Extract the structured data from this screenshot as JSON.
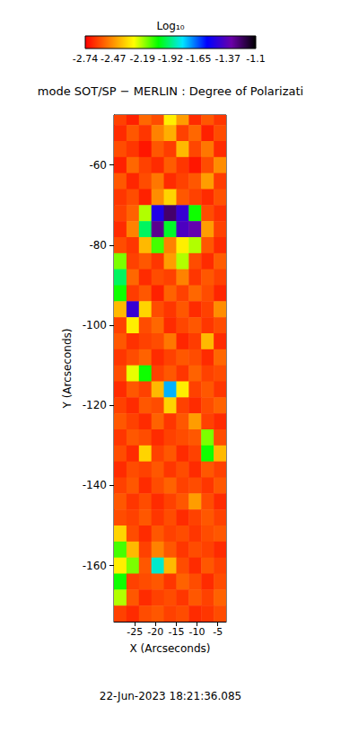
{
  "chart_data": {
    "type": "heatmap",
    "title": "mode SOT/SP − MERLIN : Degree of Polarizati",
    "x_label": "X (Arcseconds)",
    "y_label": "Y (Arcseconds)",
    "annotation": "22-Jun-2023 18:21:36.085",
    "xlim": [
      -30,
      -3
    ],
    "ylim": [
      -174,
      -47.5
    ],
    "xticks": [
      -25,
      -20,
      -15,
      -10,
      -5
    ],
    "yticks": [
      -60,
      -80,
      -100,
      -120,
      -140,
      -160
    ],
    "colorbar": {
      "label": "Log₁₀",
      "range": [
        -2.74,
        -1.1
      ],
      "ticks": [
        -2.74,
        -2.47,
        -2.19,
        -1.92,
        -1.65,
        -1.37,
        -1.1
      ]
    },
    "x": [
      -28.5,
      -25.5,
      -22.5,
      -19.5,
      -16.5,
      -13.5,
      -10.5,
      -7.5,
      -4.5
    ],
    "y": [
      -48,
      -52,
      -56,
      -60,
      -64,
      -68,
      -72,
      -76,
      -80,
      -84,
      -88,
      -92,
      -96,
      -100,
      -104,
      -108,
      -112,
      -116,
      -120,
      -124,
      -128,
      -132,
      -136,
      -140,
      -144,
      -148,
      -152,
      -156,
      -160,
      -164,
      -168,
      -172
    ],
    "values": [
      [
        -2.62,
        -2.68,
        -2.55,
        -2.6,
        -2.3,
        -2.45,
        -2.66,
        -2.58,
        -2.64
      ],
      [
        -2.66,
        -2.58,
        -2.64,
        -2.5,
        -2.42,
        -2.62,
        -2.55,
        -2.68,
        -2.6
      ],
      [
        -2.6,
        -2.64,
        -2.7,
        -2.58,
        -2.63,
        -2.4,
        -2.61,
        -2.52,
        -2.66
      ],
      [
        -2.68,
        -2.55,
        -2.62,
        -2.66,
        -2.57,
        -2.64,
        -2.7,
        -2.6,
        -2.48
      ],
      [
        -2.58,
        -2.67,
        -2.6,
        -2.52,
        -2.66,
        -2.62,
        -2.58,
        -2.45,
        -2.63
      ],
      [
        -2.64,
        -2.6,
        -2.68,
        -2.48,
        -2.35,
        -2.58,
        -2.62,
        -2.66,
        -2.59
      ],
      [
        -2.62,
        -2.56,
        -2.2,
        -1.5,
        -1.25,
        -1.45,
        -2.05,
        -2.6,
        -2.65
      ],
      [
        -2.66,
        -2.5,
        -1.95,
        -1.3,
        -2.0,
        -1.4,
        -1.35,
        -2.45,
        -2.62
      ],
      [
        -2.6,
        -2.64,
        -2.4,
        -2.1,
        -2.5,
        -2.3,
        -2.2,
        -2.58,
        -2.66
      ],
      [
        -2.15,
        -2.62,
        -2.58,
        -2.64,
        -2.45,
        -2.2,
        -2.6,
        -2.66,
        -2.57
      ],
      [
        -1.95,
        -2.55,
        -2.66,
        -2.6,
        -2.62,
        -2.5,
        -2.64,
        -2.58,
        -2.62
      ],
      [
        -2.05,
        -2.63,
        -2.58,
        -2.68,
        -2.56,
        -2.62,
        -2.55,
        -2.6,
        -2.67
      ],
      [
        -2.4,
        -1.45,
        -2.35,
        -2.6,
        -2.64,
        -2.58,
        -2.66,
        -2.62,
        -2.48
      ],
      [
        -2.62,
        -2.3,
        -2.6,
        -2.55,
        -2.66,
        -2.61,
        -2.58,
        -2.64,
        -2.6
      ],
      [
        -2.58,
        -2.65,
        -2.62,
        -2.6,
        -2.52,
        -2.67,
        -2.63,
        -2.4,
        -2.66
      ],
      [
        -2.64,
        -2.6,
        -2.56,
        -2.66,
        -2.62,
        -2.58,
        -2.6,
        -2.66,
        -2.55
      ],
      [
        -2.6,
        -2.25,
        -2.05,
        -2.62,
        -2.58,
        -2.64,
        -2.56,
        -2.62,
        -2.6
      ],
      [
        -2.66,
        -2.58,
        -2.62,
        -2.4,
        -1.75,
        -2.3,
        -2.62,
        -2.58,
        -2.64
      ],
      [
        -2.62,
        -2.66,
        -2.58,
        -2.6,
        -2.35,
        -2.62,
        -2.66,
        -2.6,
        -2.56
      ],
      [
        -2.58,
        -2.62,
        -2.66,
        -2.56,
        -2.64,
        -2.58,
        -2.45,
        -2.62,
        -2.66
      ],
      [
        -2.64,
        -2.58,
        -2.6,
        -2.66,
        -2.62,
        -2.6,
        -2.58,
        -2.15,
        -2.6
      ],
      [
        -2.6,
        -2.66,
        -2.35,
        -2.62,
        -2.58,
        -2.66,
        -2.62,
        -2.05,
        -2.4
      ],
      [
        -2.66,
        -2.6,
        -2.62,
        -2.58,
        -2.64,
        -2.6,
        -2.66,
        -2.58,
        -2.62
      ],
      [
        -2.62,
        -2.58,
        -2.66,
        -2.6,
        -2.56,
        -2.62,
        -2.6,
        -2.64,
        -2.58
      ],
      [
        -2.58,
        -2.64,
        -2.6,
        -2.66,
        -2.62,
        -2.58,
        -2.45,
        -2.6,
        -2.66
      ],
      [
        -2.6,
        -2.62,
        -2.58,
        -2.64,
        -2.6,
        -2.66,
        -2.62,
        -2.58,
        -2.62
      ],
      [
        -2.35,
        -2.6,
        -2.66,
        -2.58,
        -2.62,
        -2.6,
        -2.64,
        -2.6,
        -2.58
      ],
      [
        -2.1,
        -2.4,
        -2.62,
        -2.5,
        -2.58,
        -2.64,
        -2.6,
        -2.62,
        -2.66
      ],
      [
        -2.3,
        -2.15,
        -2.58,
        -1.85,
        -2.4,
        -2.6,
        -2.66,
        -2.58,
        -2.62
      ],
      [
        -2.05,
        -2.62,
        -2.6,
        -2.58,
        -2.64,
        -2.56,
        -2.6,
        -2.66,
        -2.6
      ],
      [
        -2.2,
        -2.58,
        -2.66,
        -2.62,
        -2.6,
        -2.64,
        -2.58,
        -2.62,
        -2.56
      ],
      [
        -2.62,
        -2.66,
        -2.6,
        -2.58,
        -2.62,
        -2.6,
        -2.66,
        -2.64,
        -2.6
      ]
    ]
  }
}
